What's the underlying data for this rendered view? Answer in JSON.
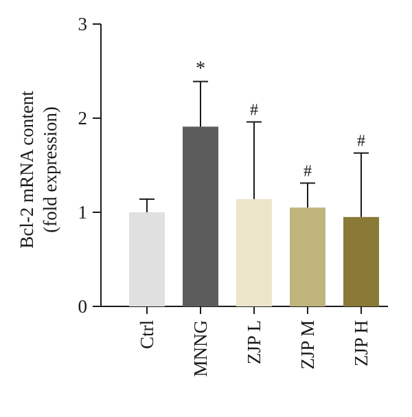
{
  "chart_data": {
    "type": "bar",
    "categories": [
      "Ctrl",
      "MNNG",
      "ZJP L",
      "ZJP M",
      "ZJP H"
    ],
    "values": [
      1.0,
      1.91,
      1.14,
      1.05,
      0.95
    ],
    "error": [
      0.14,
      0.48,
      0.82,
      0.26,
      0.68
    ],
    "annotations": [
      "",
      "*",
      "#",
      "#",
      "#"
    ],
    "colors": [
      "#e0e0e0",
      "#5c5c5c",
      "#ece5c9",
      "#c0b47d",
      "#8a7a37"
    ],
    "ylabel_line1": "Bcl-2 mRNA content",
    "ylabel_line2": "(fold expression)",
    "ylim": [
      0,
      3
    ],
    "yticks": [
      "0",
      "1",
      "2",
      "3"
    ],
    "grid": false
  }
}
